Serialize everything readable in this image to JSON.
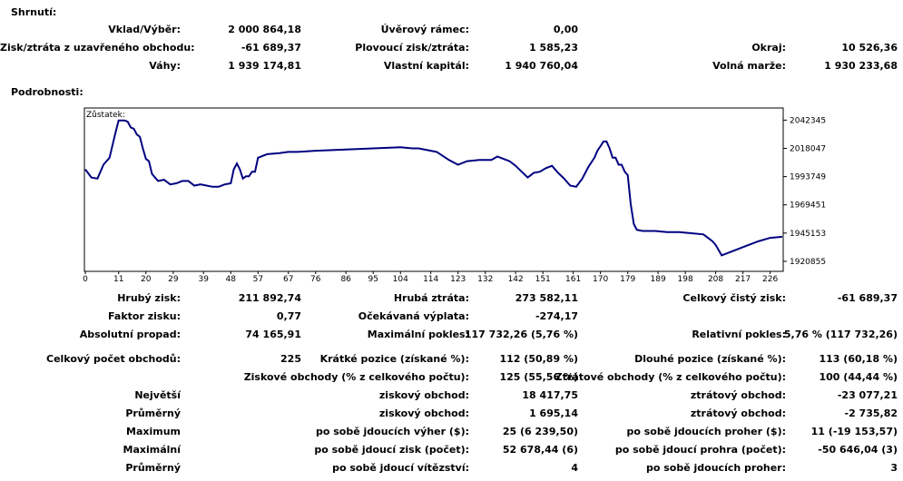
{
  "summary": {
    "heading": "Shrnutí:",
    "rows": [
      {
        "l1": "Vklad/Výběr:",
        "v1": "2 000 864,18",
        "l2": "Úvěrový rámec:",
        "v2": "0,00",
        "l3": "",
        "v3": ""
      },
      {
        "l1": "Zisk/ztráta z uzavřeného obchodu:",
        "v1": "-61 689,37",
        "l2": "Plovoucí zisk/ztráta:",
        "v2": "1 585,23",
        "l3": "Okraj:",
        "v3": "10 526,36"
      },
      {
        "l1": "Váhy:",
        "v1": "1 939 174,81",
        "l2": "Vlastní kapitál:",
        "v2": "1 940 760,04",
        "l3": "Volná marže:",
        "v3": "1 930 233,68"
      }
    ]
  },
  "details": {
    "heading": "Podrobnosti:",
    "rows": [
      {
        "l1": "Hrubý zisk:",
        "v1": "211 892,74",
        "l2": "Hrubá ztráta:",
        "v2": "273 582,11",
        "l3": "Celkový čistý zisk:",
        "v3": "-61 689,37"
      },
      {
        "l1": "Faktor zisku:",
        "v1": "0,77",
        "l2": "Očekávaná výplata:",
        "v2": "-274,17",
        "l3": "",
        "v3": ""
      },
      {
        "l1": "Absolutní propad:",
        "v1": "74 165,91",
        "l2": "Maximální pokles:",
        "v2": "117 732,26 (5,76 %)",
        "l3": "Relativní pokles:",
        "v3": "5,76 % (117 732,26)"
      },
      {
        "l1": "Celkový počet obchodů:",
        "v1": "225",
        "l2": "Krátké pozice (získané %):",
        "v2": "112 (50,89 %)",
        "l3": "Dlouhé pozice (získané %):",
        "v3": "113 (60,18 %)"
      },
      {
        "l1": "",
        "v1": "",
        "l2": "Ziskové obchody (% z celkového počtu):",
        "v2": "125 (55,56 %)",
        "l3": "Ztrátové obchody (% z celkového počtu):",
        "v3": "100 (44,44 %)"
      },
      {
        "l1": "Největší",
        "v1": "",
        "l2": "ziskový obchod:",
        "v2": "18 417,75",
        "l3": "ztrátový obchod:",
        "v3": "-23 077,21"
      },
      {
        "l1": "Průměrný",
        "v1": "",
        "l2": "ziskový obchod:",
        "v2": "1 695,14",
        "l3": "ztrátový obchod:",
        "v3": "-2 735,82"
      },
      {
        "l1": "Maximum",
        "v1": "",
        "l2": "po sobě jdoucích výher ($):",
        "v2": "25 (6 239,50)",
        "l3": "po sobě jdoucích proher ($):",
        "v3": "11 (-19 153,57)"
      },
      {
        "l1": "Maximální",
        "v1": "",
        "l2": "po sobě jdoucí zisk (počet):",
        "v2": "52 678,44 (6)",
        "l3": "po sobě jdoucí prohra (počet):",
        "v3": "-50 646,04 (3)"
      },
      {
        "l1": "Průměrný",
        "v1": "",
        "l2": "po sobě jdoucí vítězství:",
        "v2": "4",
        "l3": "po sobě jdoucích proher:",
        "v3": "3"
      }
    ]
  },
  "chart_data": {
    "type": "line",
    "series_label": "Zůstatek:",
    "line_color": "#000080",
    "x_ticks": [
      "0",
      "11",
      "20",
      "29",
      "39",
      "48",
      "57",
      "67",
      "76",
      "86",
      "95",
      "104",
      "114",
      "123",
      "132",
      "142",
      "151",
      "161",
      "170",
      "179",
      "189",
      "198",
      "208",
      "217",
      "226"
    ],
    "y_ticks": [
      "2042345",
      "2018047",
      "1993749",
      "1969451",
      "1945153",
      "1920855"
    ],
    "xlim": [
      0,
      230
    ],
    "ylim": [
      1913000,
      2052000
    ],
    "x": [
      0,
      2,
      4,
      6,
      8,
      10,
      11,
      12,
      13,
      14,
      15,
      16,
      17,
      18,
      19,
      20,
      21,
      22,
      24,
      26,
      28,
      30,
      32,
      34,
      36,
      38,
      40,
      42,
      44,
      46,
      48,
      49,
      50,
      51,
      52,
      53,
      54,
      55,
      56,
      57,
      60,
      64,
      67,
      70,
      76,
      86,
      95,
      104,
      108,
      110,
      114,
      116,
      120,
      123,
      126,
      130,
      134,
      136,
      138,
      140,
      142,
      144,
      146,
      148,
      150,
      152,
      154,
      156,
      158,
      160,
      162,
      164,
      166,
      168,
      169,
      170,
      171,
      172,
      173,
      174,
      175,
      176,
      177,
      178,
      179,
      180,
      181,
      182,
      184,
      188,
      192,
      196,
      200,
      204,
      206,
      207,
      208,
      210,
      214,
      218,
      222,
      226,
      230
    ],
    "y": [
      2000000,
      1993000,
      1992000,
      2004000,
      2010000,
      2032000,
      2042000,
      2042000,
      2042000,
      2041000,
      2036000,
      2035000,
      2030000,
      2028000,
      2018000,
      2009000,
      2007000,
      1996000,
      1990000,
      1991000,
      1987000,
      1988000,
      1990000,
      1990000,
      1986000,
      1987000,
      1986000,
      1985000,
      1985000,
      1987000,
      1988000,
      2000000,
      2005000,
      2000000,
      1992000,
      1994000,
      1994000,
      1998000,
      1998000,
      2010000,
      2013000,
      2014000,
      2015000,
      2015000,
      2016000,
      2017000,
      2018000,
      2019000,
      2018000,
      2018000,
      2016000,
      2015000,
      2008000,
      2004000,
      2007000,
      2008000,
      2008000,
      2011000,
      2009000,
      2007000,
      2003000,
      1998000,
      1993000,
      1997000,
      1998000,
      2001000,
      2003000,
      1997000,
      1992000,
      1986000,
      1985000,
      1992000,
      2002000,
      2010000,
      2016000,
      2020000,
      2024000,
      2024000,
      2018000,
      2010000,
      2010000,
      2004000,
      2004000,
      1998000,
      1995000,
      1970000,
      1953000,
      1948000,
      1947000,
      1947000,
      1946000,
      1946000,
      1945000,
      1944000,
      1940000,
      1938000,
      1935000,
      1926000,
      1930000,
      1934000,
      1938000,
      1941000,
      1942000
    ]
  }
}
